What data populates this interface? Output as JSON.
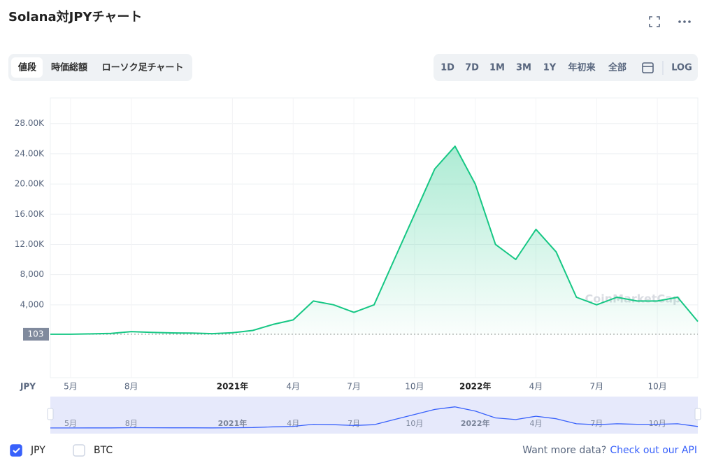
{
  "header": {
    "title": "Solana対JPYチャート"
  },
  "tabs": [
    "値段",
    "時価総額",
    "ローソク足チャート"
  ],
  "ranges": [
    "1D",
    "7D",
    "1M",
    "3M",
    "1Y",
    "年初来",
    "全部",
    "LOG"
  ],
  "chart_data": {
    "type": "line",
    "axis_unit": "JPY",
    "watermark": "CoinMarketCap",
    "x": [
      "2020-04",
      "2020-05",
      "2020-06",
      "2020-07",
      "2020-08",
      "2020-09",
      "2020-10",
      "2020-11",
      "2020-12",
      "2021-01",
      "2021-02",
      "2021-03",
      "2021-04",
      "2021-05",
      "2021-06",
      "2021-07",
      "2021-08",
      "2021-09",
      "2021-10",
      "2021-11",
      "2021-12",
      "2022-01",
      "2022-02",
      "2022-03",
      "2022-04",
      "2022-05",
      "2022-06",
      "2022-07",
      "2022-08",
      "2022-09",
      "2022-10",
      "2022-11",
      "2022-12"
    ],
    "series": [
      {
        "name": "JPY",
        "color": "#16c784",
        "values": [
          103,
          100,
          150,
          200,
          450,
          350,
          280,
          250,
          180,
          300,
          600,
          1400,
          2000,
          4500,
          4000,
          3000,
          4000,
          10000,
          16000,
          22000,
          25000,
          20000,
          12000,
          10000,
          14000,
          11000,
          5000,
          4000,
          5000,
          4500,
          4500,
          5000,
          1800
        ]
      }
    ],
    "reference_line": 103,
    "xlim": [
      "2020-04",
      "2022-12"
    ],
    "xticks": [
      {
        "value": "2020-05",
        "label": "5月"
      },
      {
        "value": "2020-08",
        "label": "8月"
      },
      {
        "value": "2021-01",
        "label": "2021年"
      },
      {
        "value": "2021-04",
        "label": "4月"
      },
      {
        "value": "2021-07",
        "label": "7月"
      },
      {
        "value": "2021-10",
        "label": "10月"
      },
      {
        "value": "2022-01",
        "label": "2022年"
      },
      {
        "value": "2022-04",
        "label": "4月"
      },
      {
        "value": "2022-07",
        "label": "7月"
      },
      {
        "value": "2022-10",
        "label": "10月"
      }
    ],
    "ylim": [
      0,
      31400
    ],
    "yticks": [
      {
        "value": 4000,
        "label": "4,000"
      },
      {
        "value": 8000,
        "label": "8,000"
      },
      {
        "value": 12000,
        "label": "12.00K"
      },
      {
        "value": 16000,
        "label": "16.00K"
      },
      {
        "value": 20000,
        "label": "20.00K"
      },
      {
        "value": 24000,
        "label": "24.00K"
      },
      {
        "value": 28000,
        "label": "28.00K"
      }
    ],
    "grid": true,
    "overview_color": "#3861fb"
  },
  "toggles": [
    {
      "label": "JPY",
      "checked": true
    },
    {
      "label": "BTC",
      "checked": false
    }
  ],
  "footer": {
    "text": "Want more data?",
    "link": "Check out our API"
  }
}
